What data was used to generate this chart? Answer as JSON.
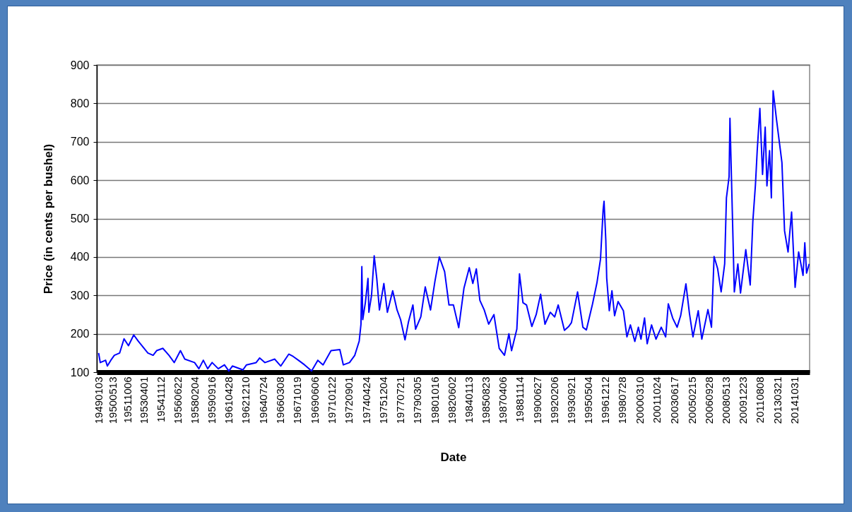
{
  "chart_data": {
    "type": "line",
    "xlabel": "Date",
    "ylabel": "Price (in cents per bushel)",
    "xlim": [
      "1948-11-01",
      "2016-04-15"
    ],
    "ylim": [
      100,
      900
    ],
    "yticks": [
      100,
      200,
      300,
      400,
      500,
      600,
      700,
      800,
      900
    ],
    "xticks": [
      {
        "value": "1949-01-03",
        "label": "19490103"
      },
      {
        "value": "1950-05-13",
        "label": "19500513"
      },
      {
        "value": "1951-10-06",
        "label": "19511006"
      },
      {
        "value": "1953-04-01",
        "label": "19530401"
      },
      {
        "value": "1954-11-12",
        "label": "19541112"
      },
      {
        "value": "1956-06-22",
        "label": "19560622"
      },
      {
        "value": "1958-02-04",
        "label": "19580204"
      },
      {
        "value": "1959-09-16",
        "label": "19590916"
      },
      {
        "value": "1961-04-28",
        "label": "19610428"
      },
      {
        "value": "1962-12-10",
        "label": "19621210"
      },
      {
        "value": "1964-07-24",
        "label": "19640724"
      },
      {
        "value": "1966-03-08",
        "label": "19660308"
      },
      {
        "value": "1967-10-19",
        "label": "19671019"
      },
      {
        "value": "1969-06-06",
        "label": "19690606"
      },
      {
        "value": "1971-01-22",
        "label": "19710122"
      },
      {
        "value": "1972-09-01",
        "label": "19720901"
      },
      {
        "value": "1974-04-24",
        "label": "19740424"
      },
      {
        "value": "1975-12-04",
        "label": "19751204"
      },
      {
        "value": "1977-07-21",
        "label": "19770721"
      },
      {
        "value": "1979-03-05",
        "label": "19790305"
      },
      {
        "value": "1980-10-16",
        "label": "19801016"
      },
      {
        "value": "1982-06-02",
        "label": "19820602"
      },
      {
        "value": "1984-01-13",
        "label": "19840113"
      },
      {
        "value": "1985-08-23",
        "label": "19850823"
      },
      {
        "value": "1987-04-06",
        "label": "19870406"
      },
      {
        "value": "1988-11-14",
        "label": "19881114"
      },
      {
        "value": "1990-06-27",
        "label": "19900627"
      },
      {
        "value": "1992-02-06",
        "label": "19920206"
      },
      {
        "value": "1993-09-21",
        "label": "19930921"
      },
      {
        "value": "1995-05-04",
        "label": "19950504"
      },
      {
        "value": "1996-12-12",
        "label": "19961212"
      },
      {
        "value": "1998-07-28",
        "label": "19980728"
      },
      {
        "value": "2000-03-10",
        "label": "20000310"
      },
      {
        "value": "2001-10-24",
        "label": "20011024"
      },
      {
        "value": "2003-06-17",
        "label": "20030617"
      },
      {
        "value": "2005-02-15",
        "label": "20050215"
      },
      {
        "value": "2006-09-28",
        "label": "20060928"
      },
      {
        "value": "2008-05-13",
        "label": "20080513"
      },
      {
        "value": "2009-12-23",
        "label": "20091223"
      },
      {
        "value": "2011-08-08",
        "label": "20110808"
      },
      {
        "value": "2013-03-21",
        "label": "20130321"
      },
      {
        "value": "2014-10-31",
        "label": "20141031"
      }
    ],
    "grid": "y",
    "series": [
      {
        "color": "#0000ff",
        "x": [
          "1949-01-03",
          "1949-03",
          "1949-09",
          "1949-11",
          "1950-03",
          "1950-07",
          "1951-01",
          "1951-06",
          "1951-11",
          "1952-05",
          "1952-10",
          "1953-09",
          "1954-03",
          "1954-07",
          "1955-02",
          "1955-09",
          "1956-03",
          "1956-10",
          "1957-03",
          "1958-02",
          "1958-07",
          "1958-12",
          "1959-05",
          "1959-10",
          "1960-05",
          "1960-12",
          "1961-05",
          "1961-09",
          "1962-09",
          "1963-01",
          "1963-12",
          "1964-04",
          "1964-10",
          "1965-09",
          "1966-04",
          "1967-01",
          "1967-06",
          "1967-12",
          "1968-07",
          "1969-03",
          "1969-10",
          "1970-04",
          "1971-01",
          "1971-11",
          "1972-03",
          "1972-10",
          "1973-04",
          "1973-09",
          "1973-11",
          "1973-12",
          "1974-01",
          "1974-04",
          "1974-07",
          "1974-08",
          "1974-11",
          "1975-02",
          "1975-05",
          "1975-08",
          "1976-01",
          "1976-05",
          "1976-11",
          "1977-04",
          "1977-08",
          "1978-01",
          "1978-05",
          "1978-10",
          "1979-01",
          "1979-07",
          "1979-12",
          "1980-06",
          "1980-11",
          "1981-04",
          "1981-10",
          "1982-03",
          "1982-08",
          "1983-02",
          "1983-08",
          "1984-02",
          "1984-06",
          "1984-10",
          "1985-02",
          "1985-07",
          "1985-12",
          "1986-06",
          "1986-12",
          "1987-06",
          "1987-11",
          "1988-02",
          "1988-08",
          "1988-11",
          "1989-03",
          "1989-07",
          "1990-01",
          "1990-06",
          "1990-11",
          "1991-04",
          "1991-10",
          "1992-03",
          "1992-07",
          "1993-02",
          "1993-07",
          "1993-10",
          "1994-05",
          "1994-11",
          "1995-03",
          "1995-10",
          "1996-03",
          "1996-07",
          "1996-10",
          "1996-11",
          "1997-01",
          "1997-02",
          "1997-05",
          "1997-08",
          "1997-11",
          "1998-03",
          "1998-09",
          "1999-01",
          "1999-05",
          "1999-10",
          "2000-02",
          "2000-05",
          "2000-09",
          "2000-12",
          "2001-05",
          "2001-10",
          "2002-04",
          "2002-09",
          "2002-12",
          "2003-05",
          "2003-10",
          "2004-02",
          "2004-08",
          "2004-12",
          "2005-04",
          "2005-10",
          "2006-02",
          "2006-09",
          "2007-01",
          "2007-04",
          "2007-08",
          "2007-12",
          "2008-04",
          "2008-06",
          "2008-09",
          "2008-10",
          "2008-12",
          "2009-03",
          "2009-07",
          "2009-10",
          "2010-04",
          "2010-09",
          "2010-12",
          "2011-03",
          "2011-05",
          "2011-08",
          "2011-11",
          "2012-02",
          "2012-04",
          "2012-07",
          "2012-09",
          "2012-11",
          "2013-03",
          "2013-07",
          "2013-09",
          "2013-12",
          "2014-04",
          "2014-08",
          "2014-12",
          "2015-04",
          "2015-09",
          "2015-11",
          "2016-01",
          "2016-04"
        ],
        "values": [
          150,
          125,
          131,
          116,
          131,
          144,
          150,
          187,
          169,
          197,
          181,
          150,
          144,
          156,
          162,
          144,
          125,
          156,
          134,
          125,
          109,
          131,
          109,
          125,
          109,
          119,
          103,
          116,
          106,
          119,
          125,
          137,
          125,
          134,
          116,
          147,
          141,
          131,
          119,
          103,
          131,
          119,
          156,
          159,
          119,
          125,
          144,
          181,
          225,
          375,
          237,
          281,
          344,
          256,
          300,
          403,
          344,
          262,
          331,
          256,
          312,
          262,
          237,
          184,
          231,
          275,
          212,
          244,
          322,
          262,
          337,
          400,
          362,
          275,
          275,
          216,
          319,
          372,
          331,
          369,
          287,
          262,
          225,
          250,
          162,
          144,
          200,
          156,
          212,
          356,
          281,
          275,
          219,
          250,
          303,
          225,
          256,
          244,
          275,
          209,
          219,
          229,
          309,
          217,
          210,
          278,
          333,
          394,
          523,
          545,
          444,
          345,
          260,
          312,
          247,
          284,
          260,
          192,
          223,
          180,
          217,
          186,
          241,
          174,
          223,
          186,
          217,
          192,
          278,
          241,
          217,
          247,
          330,
          253,
          192,
          260,
          186,
          263,
          217,
          401,
          370,
          309,
          382,
          554,
          609,
          761,
          579,
          309,
          382,
          306,
          419,
          327,
          493,
          588,
          677,
          787,
          615,
          738,
          585,
          677,
          554,
          833,
          756,
          683,
          646,
          468,
          413,
          517,
          321,
          413,
          352,
          437,
          358,
          382
        ]
      }
    ]
  }
}
